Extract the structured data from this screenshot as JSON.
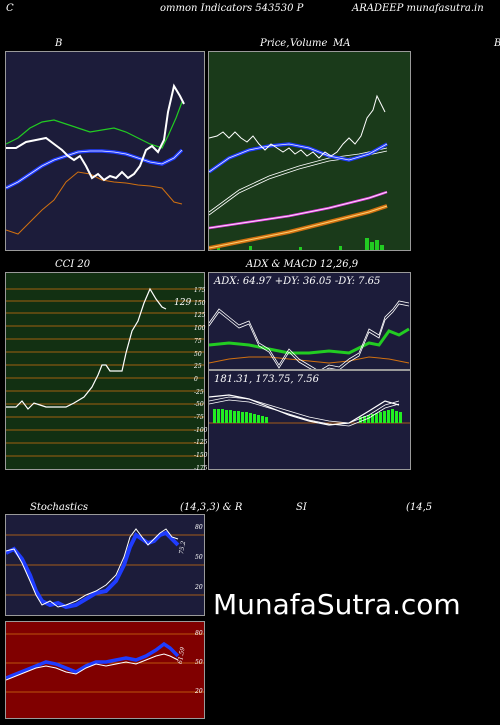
{
  "header": {
    "left": "C",
    "center": "ommon  Indicators 543530  P",
    "right": "ARADEEP munafasutra.in"
  },
  "panels": {
    "bb": {
      "title": "B"
    },
    "price": {
      "title1": "Price,",
      "title2": "Volume",
      "title3": "MA"
    },
    "price_edge": "B",
    "cci": {
      "title": "CCI 20",
      "value_label": "129",
      "axis": [
        "175",
        "150",
        "125",
        "100",
        "75",
        "50",
        "25",
        "0",
        "-25",
        "-50",
        "-75",
        "-100",
        "-125",
        "-150",
        "-175"
      ]
    },
    "adx": {
      "title": "ADX  & MACD 12,26,9",
      "values": "ADX: 64.97  +DY: 36.05 -DY: 7.65"
    },
    "macd": {
      "values": "181.31,  173.75,  7.56"
    },
    "stoch": {
      "title_left": "Stochastics",
      "title_mid": "(14,3,3) & R",
      "title_si": "SI",
      "title_right": "(14,5",
      "axis": [
        "80",
        "50",
        "20"
      ],
      "value_label": "75.2"
    },
    "rsi": {
      "axis": [
        "80",
        "50",
        "20"
      ],
      "value_label": "61.59"
    }
  },
  "watermark": "MunafaSutra.com",
  "colors": {
    "navy": "#1c1c3a",
    "green_bg": "#1a3a1a",
    "cci_bg": "#123012",
    "rsi_bg": "#800000",
    "orange": "#d07010",
    "blue": "#1f3cff"
  }
}
